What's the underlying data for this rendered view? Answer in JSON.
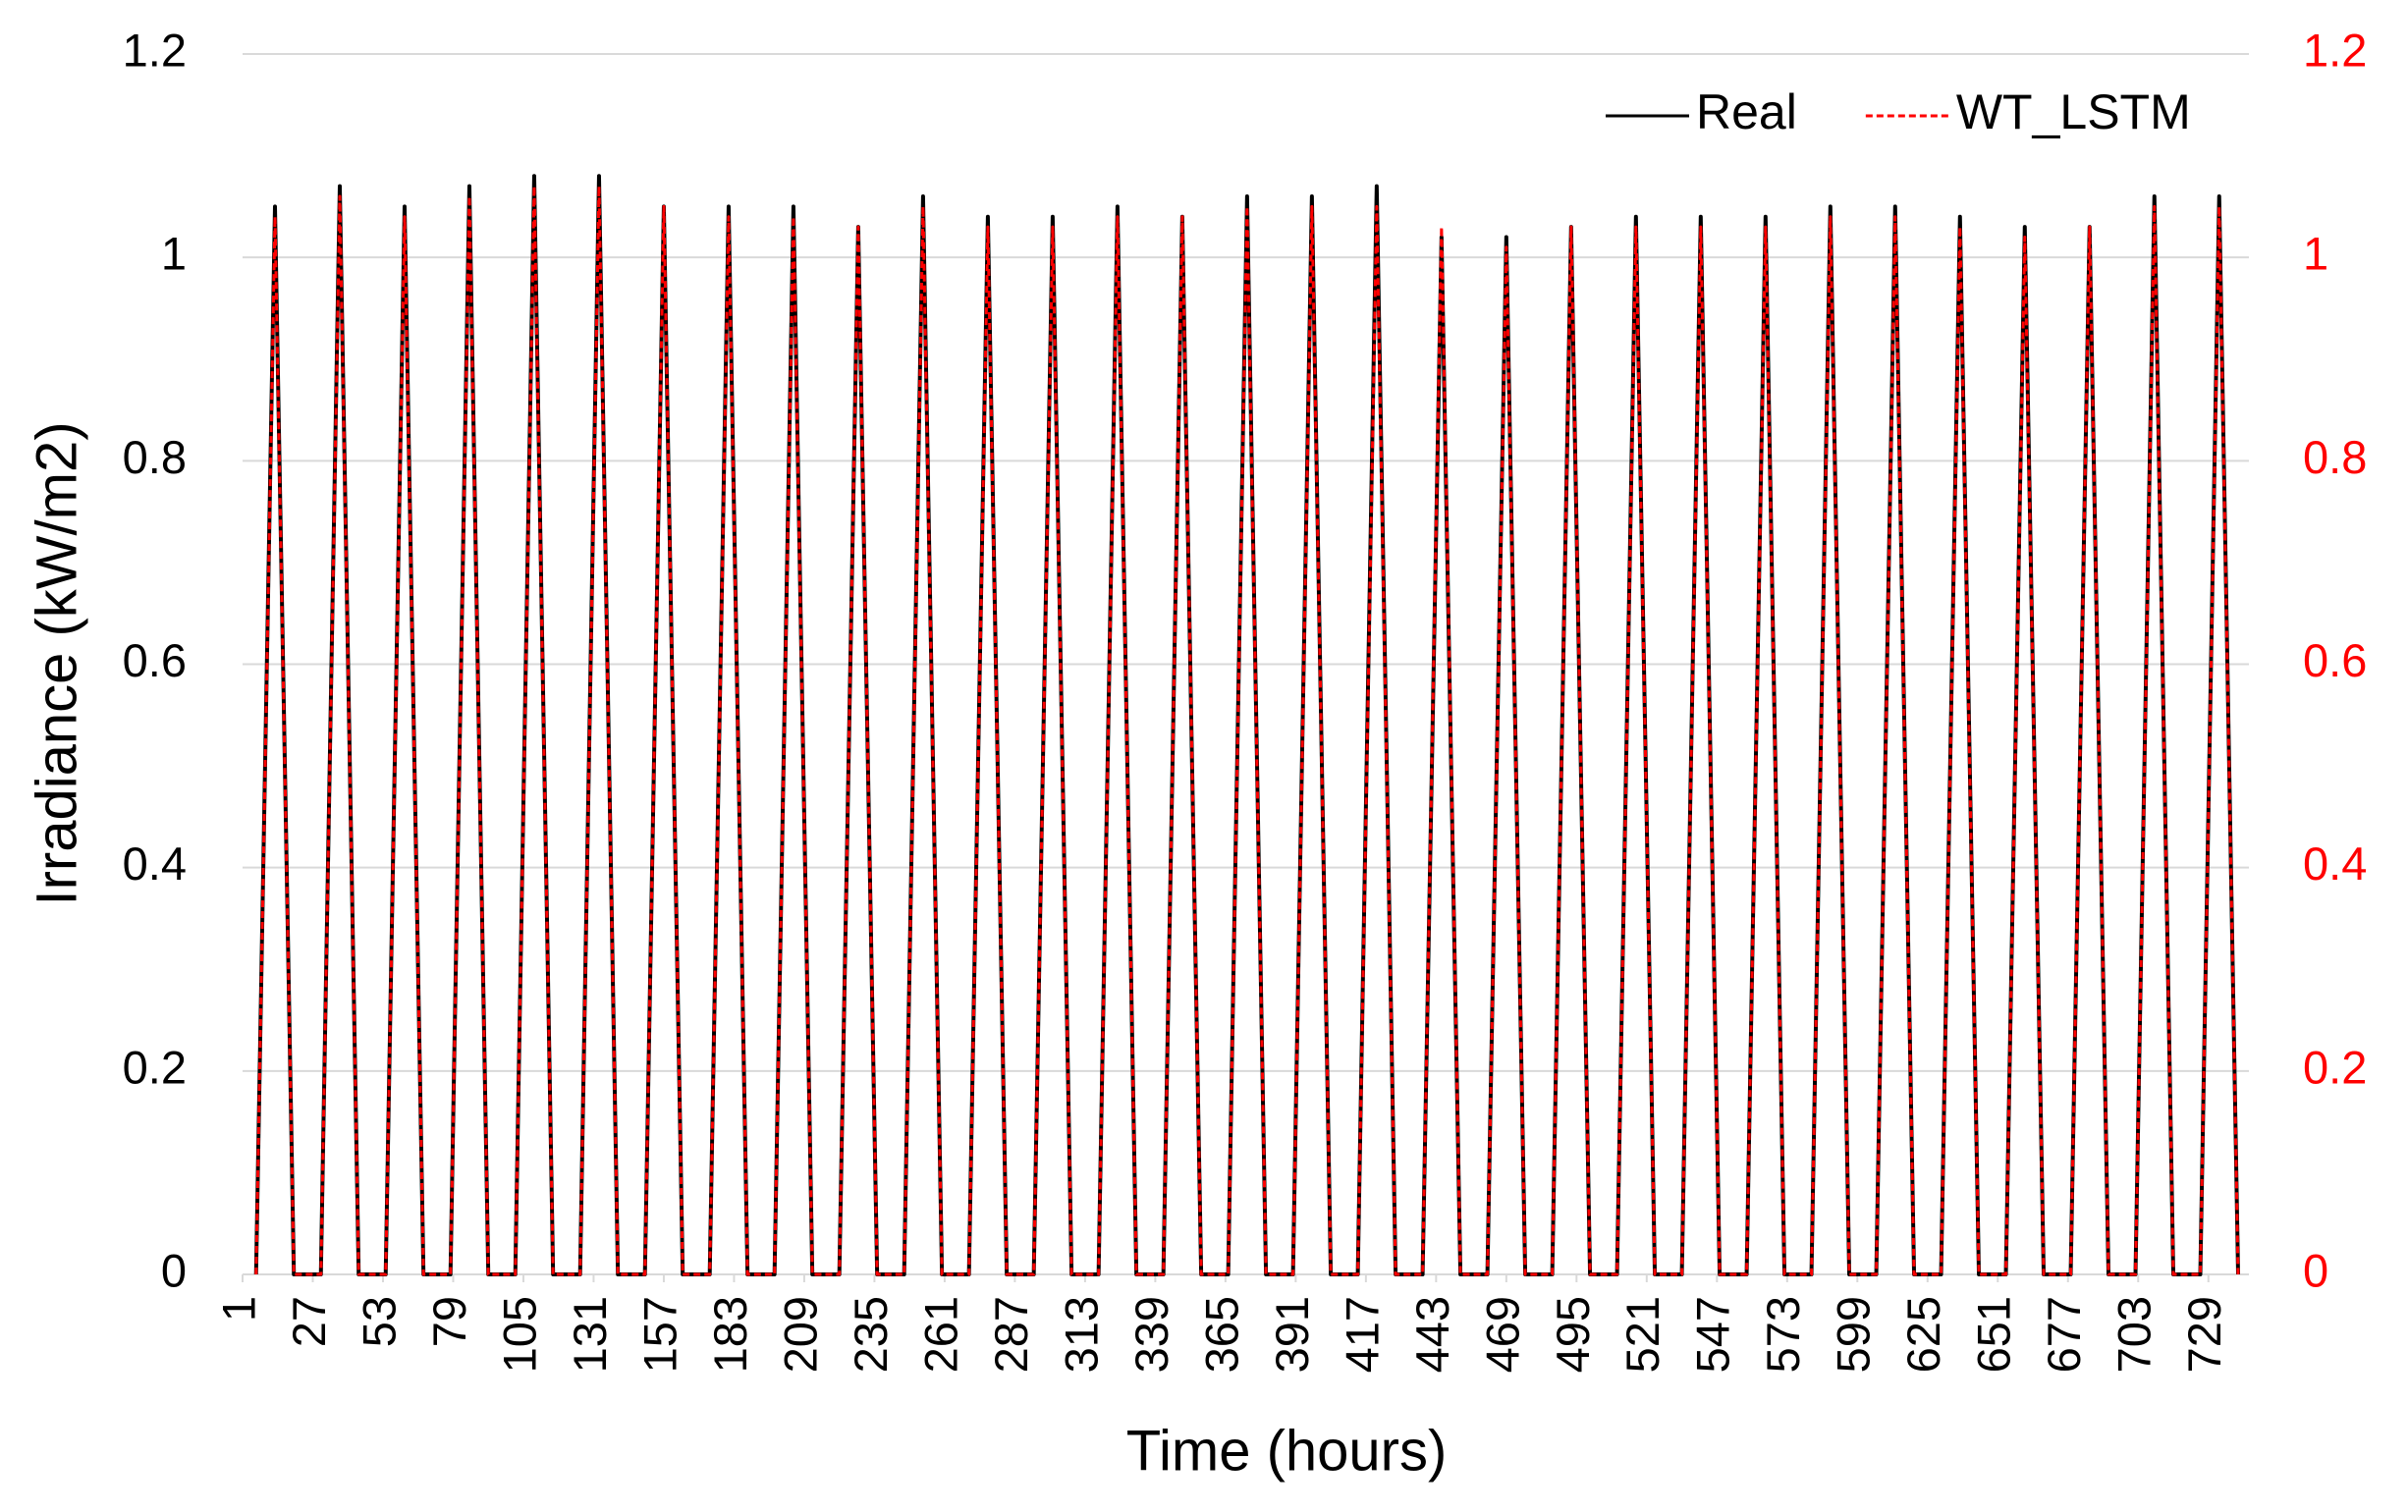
{
  "chart_data": {
    "type": "line",
    "xlabel": "Time (hours)",
    "ylabel": "Irradiance (kW/m2)",
    "xlim": [
      1,
      744
    ],
    "xticks": [
      1,
      27,
      53,
      79,
      105,
      131,
      157,
      183,
      209,
      235,
      261,
      287,
      313,
      339,
      365,
      391,
      417,
      443,
      469,
      495,
      521,
      547,
      573,
      599,
      625,
      651,
      677,
      703,
      729
    ],
    "ylim": [
      0,
      1.2
    ],
    "yticks": [
      0,
      0.2,
      0.4,
      0.6,
      0.8,
      1,
      1.2
    ],
    "y2lim": [
      0,
      1.2
    ],
    "y2ticks": [
      0,
      0.2,
      0.4,
      0.6,
      0.8,
      1,
      1.2
    ],
    "grid": true,
    "legend": "upper right",
    "x": [
      6,
      13,
      20,
      30,
      37,
      44,
      54,
      61,
      68,
      78,
      85,
      92,
      102,
      109,
      116,
      126,
      133,
      140,
      150,
      157,
      164,
      174,
      181,
      188,
      198,
      205,
      212,
      222,
      229,
      236,
      246,
      253,
      260,
      270,
      277,
      284,
      294,
      301,
      308,
      318,
      325,
      332,
      342,
      349,
      356,
      366,
      373,
      380,
      390,
      397,
      404,
      414,
      421,
      428,
      438,
      445,
      452,
      462,
      469,
      476,
      486,
      493,
      500,
      510,
      517,
      524,
      534,
      541,
      548,
      558,
      565,
      572,
      582,
      589,
      596,
      606,
      613,
      620,
      630,
      637,
      644,
      654,
      661,
      668,
      678,
      685,
      692,
      702,
      709,
      716,
      726,
      733,
      740
    ],
    "series": [
      {
        "name": "Real",
        "color": "#000000",
        "dash": false,
        "values": [
          0,
          1.05,
          0,
          0,
          1.07,
          0,
          0,
          1.05,
          0,
          0,
          1.07,
          0,
          0,
          1.08,
          0,
          0,
          1.08,
          0,
          0,
          1.05,
          0,
          0,
          1.05,
          0,
          0,
          1.05,
          0,
          0,
          1.03,
          0,
          0,
          1.06,
          0,
          0,
          1.04,
          0,
          0,
          1.04,
          0,
          0,
          1.05,
          0,
          0,
          1.04,
          0,
          0,
          1.06,
          0,
          0,
          1.06,
          0,
          0,
          1.07,
          0,
          0,
          1.02,
          0,
          0,
          1.02,
          0,
          0,
          1.03,
          0,
          0,
          1.04,
          0,
          0,
          1.04,
          0,
          0,
          1.04,
          0,
          0,
          1.05,
          0,
          0,
          1.05,
          0,
          0,
          1.04,
          0,
          0,
          1.03,
          0,
          0,
          1.03,
          0,
          0,
          1.06,
          0,
          0,
          1.06,
          0
        ]
      },
      {
        "name": "WT_LSTM",
        "color": "#ff0000",
        "dash": true,
        "axis": "y2",
        "values": [
          0,
          1.04,
          0,
          0,
          1.06,
          0,
          0,
          1.04,
          0,
          0,
          1.06,
          0,
          0,
          1.07,
          0,
          0,
          1.07,
          0,
          0,
          1.05,
          0,
          0,
          1.04,
          0,
          0,
          1.04,
          0,
          0,
          1.03,
          0,
          0,
          1.05,
          0,
          0,
          1.03,
          0,
          0,
          1.03,
          0,
          0,
          1.04,
          0,
          0,
          1.04,
          0,
          0,
          1.05,
          0,
          0,
          1.05,
          0,
          0,
          1.05,
          0,
          0,
          1.03,
          0,
          0,
          1.01,
          0,
          0,
          1.03,
          0,
          0,
          1.03,
          0,
          0,
          1.03,
          0,
          0,
          1.03,
          0,
          0,
          1.04,
          0,
          0,
          1.04,
          0,
          0,
          1.03,
          0,
          0,
          1.02,
          0,
          0,
          1.03,
          0,
          0,
          1.05,
          0,
          0,
          1.05,
          0
        ]
      }
    ]
  }
}
